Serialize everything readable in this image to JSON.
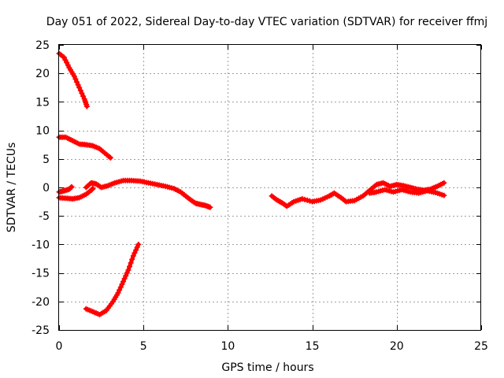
{
  "chart_data": {
    "type": "scatter",
    "title": "Day 051 of 2022, Sidereal Day-to-day VTEC variation (SDTVAR) for receiver ffmj",
    "xlabel": "GPS time / hours",
    "ylabel": "SDTVAR / TECUs",
    "xlim": [
      0,
      25
    ],
    "ylim": [
      -25,
      25
    ],
    "xticks": [
      0,
      5,
      10,
      15,
      20,
      25
    ],
    "yticks": [
      -25,
      -20,
      -15,
      -10,
      -5,
      0,
      5,
      10,
      15,
      20,
      25
    ],
    "grid": true,
    "color": "#ff0000",
    "series": [
      {
        "name": "arc-high",
        "points": [
          [
            0.0,
            23.5
          ],
          [
            0.3,
            22.8
          ],
          [
            0.6,
            21.0
          ],
          [
            0.9,
            19.5
          ],
          [
            1.2,
            17.5
          ],
          [
            1.5,
            15.5
          ],
          [
            1.65,
            14.2
          ]
        ]
      },
      {
        "name": "arc-mid",
        "points": [
          [
            0.0,
            8.8
          ],
          [
            0.4,
            8.8
          ],
          [
            0.8,
            8.2
          ],
          [
            1.2,
            7.6
          ],
          [
            1.6,
            7.5
          ],
          [
            2.0,
            7.3
          ],
          [
            2.4,
            6.8
          ],
          [
            2.8,
            5.8
          ],
          [
            3.05,
            5.2
          ]
        ]
      },
      {
        "name": "arc-start-upper",
        "points": [
          [
            0.0,
            -0.8
          ],
          [
            0.3,
            -0.6
          ],
          [
            0.6,
            -0.3
          ],
          [
            0.75,
            0.1
          ]
        ]
      },
      {
        "name": "arc-start-lower",
        "points": [
          [
            0.0,
            -1.8
          ],
          [
            0.4,
            -1.9
          ],
          [
            0.8,
            -2.0
          ],
          [
            1.2,
            -1.8
          ],
          [
            1.6,
            -1.2
          ],
          [
            1.9,
            -0.5
          ],
          [
            2.0,
            -0.2
          ]
        ]
      },
      {
        "name": "arc-main",
        "points": [
          [
            1.6,
            0.0
          ],
          [
            1.9,
            0.8
          ],
          [
            2.2,
            0.6
          ],
          [
            2.5,
            0.0
          ],
          [
            2.9,
            0.3
          ],
          [
            3.3,
            0.8
          ],
          [
            3.8,
            1.2
          ],
          [
            4.3,
            1.2
          ],
          [
            4.8,
            1.1
          ],
          [
            5.3,
            0.8
          ],
          [
            5.8,
            0.5
          ],
          [
            6.3,
            0.2
          ],
          [
            6.8,
            -0.2
          ],
          [
            7.2,
            -0.8
          ],
          [
            7.5,
            -1.5
          ],
          [
            7.8,
            -2.2
          ],
          [
            8.1,
            -2.8
          ],
          [
            8.4,
            -3.0
          ],
          [
            8.7,
            -3.2
          ],
          [
            8.95,
            -3.5
          ]
        ]
      },
      {
        "name": "arc-low",
        "points": [
          [
            1.6,
            -21.3
          ],
          [
            2.0,
            -21.8
          ],
          [
            2.4,
            -22.3
          ],
          [
            2.8,
            -21.6
          ],
          [
            3.2,
            -20.0
          ],
          [
            3.5,
            -18.5
          ],
          [
            3.8,
            -16.5
          ],
          [
            4.1,
            -14.5
          ],
          [
            4.4,
            -12.0
          ],
          [
            4.7,
            -10.0
          ]
        ]
      },
      {
        "name": "arc-evening",
        "points": [
          [
            12.6,
            -1.5
          ],
          [
            12.9,
            -2.2
          ],
          [
            13.2,
            -2.7
          ],
          [
            13.5,
            -3.3
          ],
          [
            13.9,
            -2.5
          ],
          [
            14.4,
            -2.0
          ],
          [
            15.0,
            -2.5
          ],
          [
            15.5,
            -2.2
          ],
          [
            16.0,
            -1.5
          ],
          [
            16.3,
            -1.0
          ],
          [
            16.7,
            -1.8
          ],
          [
            17.0,
            -2.5
          ],
          [
            17.5,
            -2.3
          ],
          [
            18.0,
            -1.5
          ],
          [
            18.4,
            -0.5
          ],
          [
            18.8,
            0.5
          ],
          [
            19.2,
            0.8
          ],
          [
            19.6,
            0.2
          ],
          [
            20.0,
            0.5
          ],
          [
            20.4,
            0.3
          ],
          [
            20.8,
            0.0
          ],
          [
            21.2,
            -0.3
          ],
          [
            21.6,
            -0.5
          ],
          [
            22.0,
            -0.3
          ],
          [
            22.4,
            0.2
          ],
          [
            22.8,
            0.8
          ]
        ]
      },
      {
        "name": "arc-evening-lower",
        "points": [
          [
            18.4,
            -1.0
          ],
          [
            18.8,
            -0.8
          ],
          [
            19.3,
            -0.4
          ],
          [
            19.8,
            -0.8
          ],
          [
            20.3,
            -0.4
          ],
          [
            20.8,
            -0.8
          ],
          [
            21.3,
            -1.0
          ],
          [
            21.8,
            -0.6
          ],
          [
            22.3,
            -0.9
          ],
          [
            22.8,
            -1.4
          ]
        ]
      }
    ]
  }
}
